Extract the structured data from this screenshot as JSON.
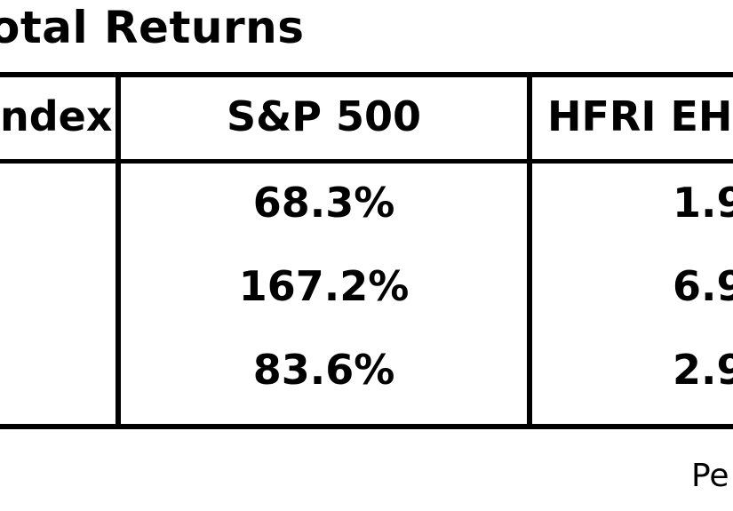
{
  "title": "otal Returns",
  "table": {
    "headers": [
      "ndex",
      "S&P 500",
      "HFRI EH"
    ],
    "rows": [
      {
        "label": "",
        "sp500": "68.3%",
        "hfri": "1.9"
      },
      {
        "label": "",
        "sp500": "167.2%",
        "hfri": "6.9"
      },
      {
        "label": "",
        "sp500": "83.6%",
        "hfri": "2.9"
      }
    ]
  },
  "footer": "Pe"
}
